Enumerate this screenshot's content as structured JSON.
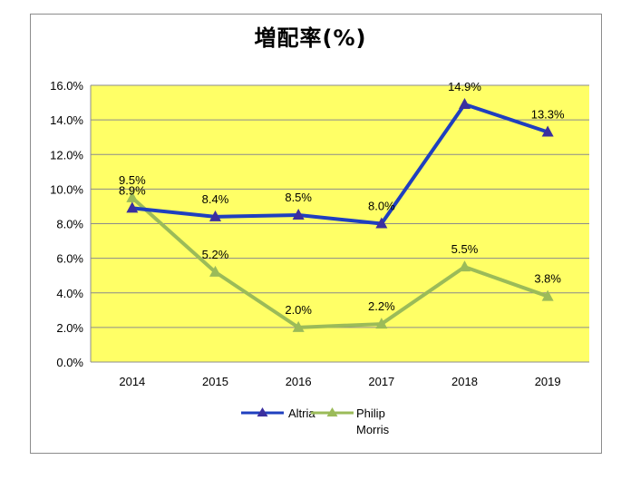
{
  "chart_data": {
    "type": "line",
    "title": "増配率(%)",
    "xlabel": "",
    "ylabel": "",
    "categories": [
      "2014",
      "2015",
      "2016",
      "2017",
      "2018",
      "2019"
    ],
    "ylim": [
      0,
      16
    ],
    "yticks": [
      "0.0%",
      "2.0%",
      "4.0%",
      "6.0%",
      "8.0%",
      "10.0%",
      "12.0%",
      "14.0%",
      "16.0%"
    ],
    "grid": true,
    "legend": "bottom",
    "plot_background": "#ffff66",
    "series": [
      {
        "name": "Altria",
        "color": "#1f3fbf",
        "marker_color": "#3b2f9f",
        "values": [
          8.9,
          8.4,
          8.5,
          8.0,
          14.9,
          13.3
        ],
        "labels": [
          "8.9%",
          "8.4%",
          "8.5%",
          "8.0%",
          "14.9%",
          "13.3%"
        ]
      },
      {
        "name": "Philip Morris",
        "color": "#9bbb59",
        "marker_color": "#9bbb59",
        "values": [
          9.5,
          5.2,
          2.0,
          2.2,
          5.5,
          3.8
        ],
        "labels": [
          "9.5%",
          "5.2%",
          "2.0%",
          "2.2%",
          "5.5%",
          "3.8%"
        ]
      }
    ],
    "legend_labels": {
      "altria": "Altria",
      "pm_line1": "Philip",
      "pm_line2": "Morris"
    }
  }
}
